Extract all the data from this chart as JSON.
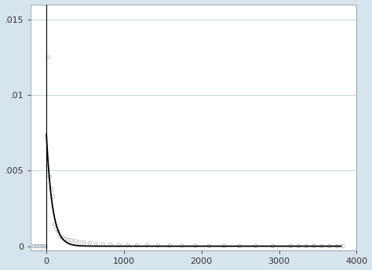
{
  "xlim": [
    -200,
    3900
  ],
  "ylim": [
    -0.0003,
    0.016
  ],
  "xticks": [
    0,
    1000,
    2000,
    3000,
    4000
  ],
  "yticks": [
    0,
    0.005,
    0.01,
    0.015
  ],
  "ytick_labels": [
    "0",
    ".005",
    ".01",
    ".015"
  ],
  "xtick_labels": [
    "0",
    "1000",
    "2000",
    "3000",
    "4000"
  ],
  "fig_bg_color": "#d6e4ee",
  "plot_bg_color": "#ffffff",
  "line_color": "#000000",
  "scatter_color": "#b0b8c0",
  "grid_color": "#c8d8e4",
  "vline_x": 0,
  "scatter_points_left": [
    [
      -175,
      0.0
    ],
    [
      -155,
      0.0
    ],
    [
      -135,
      0.0
    ],
    [
      -115,
      0.0
    ],
    [
      -95,
      0.0
    ],
    [
      -75,
      0.0
    ],
    [
      -55,
      0.0
    ],
    [
      -38,
      0.0
    ],
    [
      -22,
      0.0
    ],
    [
      -10,
      0.0
    ]
  ],
  "scatter_points_right": [
    [
      20,
      0.0125
    ],
    [
      45,
      0.0046
    ],
    [
      65,
      0.0038
    ],
    [
      85,
      0.0033
    ],
    [
      105,
      0.00145
    ],
    [
      130,
      0.00115
    ],
    [
      155,
      0.00095
    ],
    [
      180,
      0.00065
    ],
    [
      210,
      0.00055
    ],
    [
      245,
      0.00048
    ],
    [
      285,
      0.00042
    ],
    [
      325,
      0.00038
    ],
    [
      375,
      0.00033
    ],
    [
      430,
      0.00028
    ],
    [
      490,
      0.00024
    ],
    [
      560,
      0.0002
    ],
    [
      640,
      0.00016
    ],
    [
      730,
      0.00013
    ],
    [
      830,
      0.0001
    ],
    [
      940,
      8.2e-05
    ],
    [
      1050,
      6.8e-05
    ],
    [
      1170,
      5.8e-05
    ],
    [
      1300,
      5e-05
    ],
    [
      1440,
      4.3e-05
    ],
    [
      1590,
      3.7e-05
    ],
    [
      1750,
      3.2e-05
    ],
    [
      1920,
      2.7e-05
    ],
    [
      2100,
      2.3e-05
    ],
    [
      2290,
      1.9e-05
    ],
    [
      2490,
      1.6e-05
    ],
    [
      2700,
      1.3e-05
    ],
    [
      2920,
      1e-05
    ],
    [
      3150,
      8.5e-06
    ],
    [
      3250,
      7e-06
    ],
    [
      3350,
      6e-06
    ],
    [
      3450,
      5e-06
    ],
    [
      3550,
      -4e-06
    ],
    [
      3650,
      -3e-06
    ],
    [
      3750,
      -2e-06
    ],
    [
      3820,
      1e-06
    ]
  ],
  "curve_scale": 0.0075,
  "curve_decay": 0.013,
  "figsize": [
    4.74,
    3.44
  ],
  "dpi": 100
}
